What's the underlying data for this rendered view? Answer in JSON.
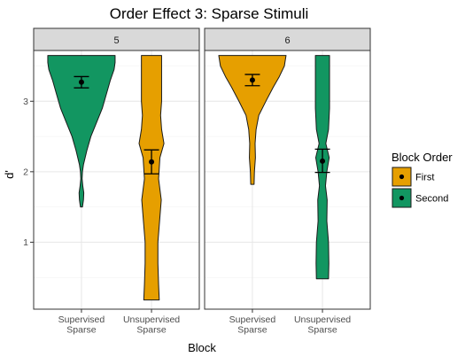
{
  "chart_data": {
    "type": "violin",
    "title": "Order Effect 3: Sparse Stimuli",
    "xlabel": "Block",
    "ylabel": "d'",
    "ylim": [
      0.05,
      3.72
    ],
    "yticks": [
      1,
      2,
      3
    ],
    "categories": [
      "Supervised\nSparse",
      "Unsupervised\nSparse"
    ],
    "grid": true,
    "legend": {
      "title": "Block Order",
      "position": "right",
      "entries": [
        {
          "name": "First",
          "color": "#E69F00"
        },
        {
          "name": "Second",
          "color": "#129661"
        }
      ]
    },
    "facets": [
      {
        "label": "5",
        "violins": [
          {
            "category": 0,
            "group": "Second",
            "ymin": 1.5,
            "ymax": 3.65,
            "mean": 3.27,
            "error_low": 3.19,
            "error_high": 3.35,
            "width_profile": [
              [
                1.5,
                0.03
              ],
              [
                1.6,
                0.06
              ],
              [
                1.7,
                0.07
              ],
              [
                1.8,
                0.04
              ],
              [
                1.9,
                0.02
              ],
              [
                2.0,
                0.03
              ],
              [
                2.1,
                0.06
              ],
              [
                2.3,
                0.16
              ],
              [
                2.5,
                0.28
              ],
              [
                2.7,
                0.45
              ],
              [
                2.9,
                0.62
              ],
              [
                3.1,
                0.74
              ],
              [
                3.3,
                0.86
              ],
              [
                3.45,
                0.97
              ],
              [
                3.55,
                1.0
              ],
              [
                3.65,
                1.0
              ]
            ]
          },
          {
            "category": 1,
            "group": "First",
            "ymin": 0.18,
            "ymax": 3.65,
            "mean": 2.14,
            "error_low": 1.97,
            "error_high": 2.31,
            "width_profile": [
              [
                0.18,
                0.23
              ],
              [
                0.4,
                0.21
              ],
              [
                0.7,
                0.19
              ],
              [
                1.0,
                0.19
              ],
              [
                1.3,
                0.24
              ],
              [
                1.6,
                0.29
              ],
              [
                1.9,
                0.21
              ],
              [
                2.2,
                0.25
              ],
              [
                2.4,
                0.37
              ],
              [
                2.6,
                0.3
              ],
              [
                2.8,
                0.27
              ],
              [
                3.0,
                0.3
              ],
              [
                3.3,
                0.3
              ],
              [
                3.65,
                0.3
              ]
            ]
          }
        ]
      },
      {
        "label": "6",
        "violins": [
          {
            "category": 0,
            "group": "First",
            "ymin": 1.82,
            "ymax": 3.65,
            "mean": 3.3,
            "error_low": 3.22,
            "error_high": 3.38,
            "width_profile": [
              [
                1.82,
                0.05
              ],
              [
                2.0,
                0.06
              ],
              [
                2.2,
                0.09
              ],
              [
                2.4,
                0.08
              ],
              [
                2.6,
                0.11
              ],
              [
                2.8,
                0.19
              ],
              [
                3.0,
                0.4
              ],
              [
                3.2,
                0.62
              ],
              [
                3.35,
                0.8
              ],
              [
                3.5,
                0.95
              ],
              [
                3.65,
                1.0
              ]
            ]
          },
          {
            "category": 1,
            "group": "Second",
            "ymin": 0.48,
            "ymax": 3.65,
            "mean": 2.15,
            "error_low": 1.99,
            "error_high": 2.32,
            "width_profile": [
              [
                0.48,
                0.18
              ],
              [
                0.7,
                0.19
              ],
              [
                1.0,
                0.18
              ],
              [
                1.3,
                0.13
              ],
              [
                1.6,
                0.14
              ],
              [
                1.8,
                0.09
              ],
              [
                2.0,
                0.13
              ],
              [
                2.2,
                0.2
              ],
              [
                2.4,
                0.1
              ],
              [
                2.6,
                0.18
              ],
              [
                2.9,
                0.21
              ],
              [
                3.2,
                0.21
              ],
              [
                3.65,
                0.21
              ]
            ]
          }
        ]
      }
    ]
  }
}
